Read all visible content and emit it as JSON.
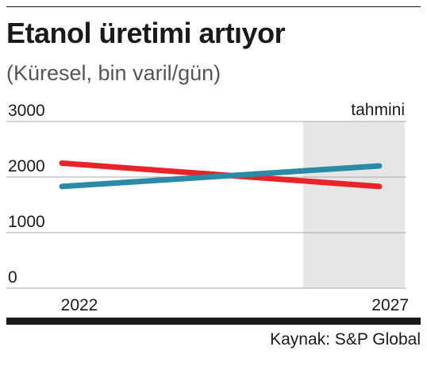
{
  "title": "Etanol üretimi artıyor",
  "subtitle": "(Küresel, bin varil/gün)",
  "source": "Kaynak: S&P Global",
  "colors": {
    "background": "#ffffff",
    "text": "#1a1a1a",
    "grid": "#a8a8a8",
    "forecast_band": "#e6e6e6"
  },
  "chart_data": {
    "type": "line",
    "title": "Etanol üretimi artıyor",
    "subtitle": "(Küresel, bin varil/gün)",
    "xlabel": "",
    "ylabel": "",
    "x": [
      2022,
      2027
    ],
    "x_tick_labels": [
      "2022",
      "2027"
    ],
    "ylim": [
      0,
      3000
    ],
    "y_ticks": [
      0,
      1000,
      2000,
      3000
    ],
    "y_tick_labels": [
      "0",
      "1000",
      "2000",
      "3000"
    ],
    "grid": true,
    "forecast_label": "tahmini",
    "forecast_range": [
      2025.8,
      2027.4
    ],
    "series": [
      {
        "color": "#e8232a",
        "values": [
          2250,
          1830
        ]
      },
      {
        "color": "#2b8aa6",
        "values": [
          1830,
          2200
        ]
      }
    ]
  }
}
